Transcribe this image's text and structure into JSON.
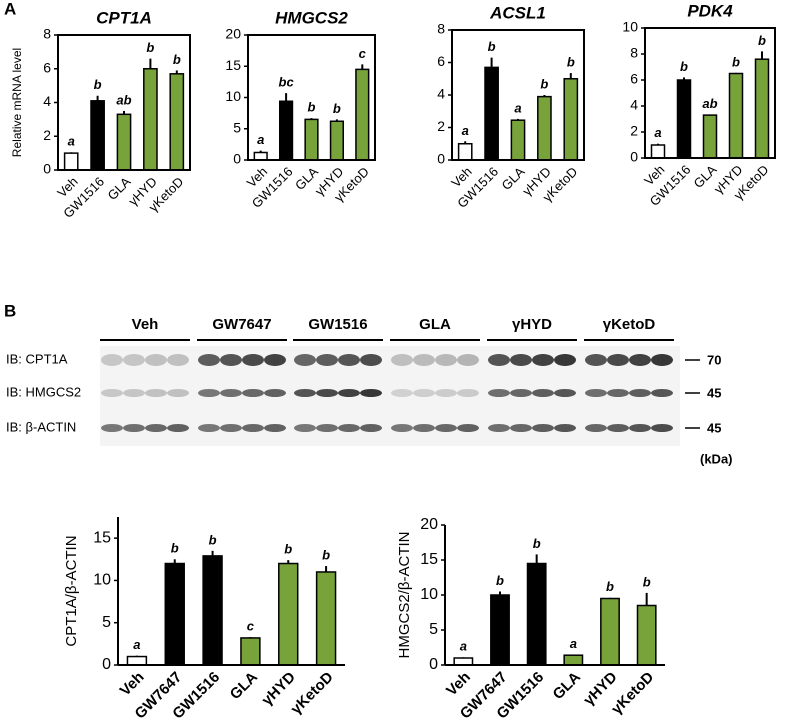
{
  "panel_labels": [
    "A",
    "B"
  ],
  "blot": {
    "groups": [
      "Veh",
      "GW7647",
      "GW1516",
      "GLA",
      "γHYD",
      "γKetoD"
    ],
    "rows": [
      {
        "label": "IB: CPT1A",
        "kda": "70"
      },
      {
        "label": "IB: HMGCS2",
        "kda": "45"
      },
      {
        "label": "IB: β-ACTIN",
        "kda": "45"
      }
    ],
    "unit": "(kDa)"
  },
  "chart_data": [
    {
      "type": "bar",
      "title": "CPT1A",
      "ylabel": "Relative mRNA level",
      "frame": true,
      "categories": [
        "Veh",
        "GW1516",
        "GLA",
        "γHYD",
        "γKetoD"
      ],
      "values": [
        1.0,
        4.1,
        3.3,
        6.0,
        5.7
      ],
      "errors": [
        0.05,
        0.3,
        0.2,
        0.6,
        0.2
      ],
      "annotations": [
        "a",
        "b",
        "ab",
        "b",
        "b"
      ],
      "colors": [
        "#ffffff",
        "#000000",
        "#77a33a",
        "#77a33a",
        "#77a33a"
      ],
      "ylim": [
        0,
        8
      ],
      "yticks": [
        0,
        2,
        4,
        6,
        8
      ]
    },
    {
      "type": "bar",
      "title": "HMGCS2",
      "frame": true,
      "categories": [
        "Veh",
        "GW1516",
        "GLA",
        "γHYD",
        "γKetoD"
      ],
      "values": [
        1.2,
        9.4,
        6.5,
        6.2,
        14.5
      ],
      "errors": [
        0.3,
        1.3,
        0.2,
        0.3,
        0.8
      ],
      "annotations": [
        "a",
        "bc",
        "b",
        "b",
        "c"
      ],
      "colors": [
        "#ffffff",
        "#000000",
        "#77a33a",
        "#77a33a",
        "#77a33a"
      ],
      "ylim": [
        0,
        20
      ],
      "yticks": [
        0,
        5,
        10,
        15,
        20
      ]
    },
    {
      "type": "bar",
      "title": "ACSL1",
      "frame": true,
      "categories": [
        "Veh",
        "GW1516",
        "GLA",
        "γHYD",
        "γKetoD"
      ],
      "values": [
        1.0,
        5.7,
        2.45,
        3.9,
        5.0
      ],
      "errors": [
        0.15,
        0.6,
        0.08,
        0.1,
        0.35
      ],
      "annotations": [
        "a",
        "b",
        "a",
        "b",
        "b"
      ],
      "colors": [
        "#ffffff",
        "#000000",
        "#77a33a",
        "#77a33a",
        "#77a33a"
      ],
      "ylim": [
        0,
        8
      ],
      "yticks": [
        0,
        2,
        4,
        6,
        8
      ]
    },
    {
      "type": "bar",
      "title": "PDK4",
      "frame": true,
      "categories": [
        "Veh",
        "GW1516",
        "GLA",
        "γHYD",
        "γKetoD"
      ],
      "values": [
        1.0,
        6.0,
        3.3,
        6.5,
        7.6
      ],
      "errors": [
        0.1,
        0.2,
        0.05,
        0.05,
        0.6
      ],
      "annotations": [
        "a",
        "b",
        "ab",
        "b",
        "b"
      ],
      "colors": [
        "#ffffff",
        "#000000",
        "#77a33a",
        "#77a33a",
        "#77a33a"
      ],
      "ylim": [
        0,
        10
      ],
      "yticks": [
        0,
        2,
        4,
        6,
        8,
        10
      ]
    },
    {
      "type": "bar",
      "ylabel": "CPT1A/β-ACTIN",
      "frame": false,
      "categories": [
        "Veh",
        "GW7647",
        "GW1516",
        "GLA",
        "γHYD",
        "γKetoD"
      ],
      "values": [
        1.0,
        12.0,
        12.9,
        3.2,
        12.0,
        11.0
      ],
      "errors": [
        0.1,
        0.5,
        0.6,
        0.1,
        0.4,
        0.7
      ],
      "annotations": [
        "a",
        "b",
        "b",
        "c",
        "b",
        "b"
      ],
      "colors": [
        "#ffffff",
        "#000000",
        "#000000",
        "#77a33a",
        "#77a33a",
        "#77a33a"
      ],
      "ylim": [
        0,
        17.5
      ],
      "yticks": [
        0,
        5,
        10,
        15
      ]
    },
    {
      "type": "bar",
      "ylabel": "HMGCS2/β-ACTIN",
      "frame": false,
      "categories": [
        "Veh",
        "GW7647",
        "GW1516",
        "GLA",
        "γHYD",
        "γKetoD"
      ],
      "values": [
        1.0,
        10.0,
        14.5,
        1.4,
        9.5,
        8.5
      ],
      "errors": [
        0.1,
        0.5,
        1.3,
        0.1,
        0.1,
        1.8
      ],
      "annotations": [
        "a",
        "b",
        "b",
        "a",
        "b",
        "b"
      ],
      "colors": [
        "#ffffff",
        "#000000",
        "#000000",
        "#77a33a",
        "#77a33a",
        "#77a33a"
      ],
      "ylim": [
        0,
        20
      ],
      "yticks": [
        0,
        5,
        10,
        15,
        20
      ]
    }
  ]
}
